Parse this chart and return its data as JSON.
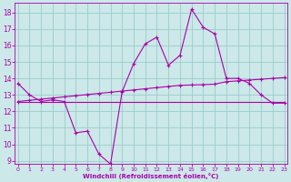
{
  "xlabel": "Windchill (Refroidissement éolien,°C)",
  "background_color": "#cce8e8",
  "line_color": "#aa00aa",
  "grid_color": "#99cccc",
  "x_hours": [
    0,
    1,
    2,
    3,
    4,
    5,
    6,
    7,
    8,
    9,
    10,
    11,
    12,
    13,
    14,
    15,
    16,
    17,
    18,
    19,
    20,
    21,
    22,
    23
  ],
  "temp_main": [
    13.7,
    13.0,
    12.6,
    12.7,
    12.6,
    10.7,
    10.8,
    9.4,
    8.8,
    13.2,
    14.9,
    16.1,
    16.5,
    14.8,
    15.4,
    18.2,
    17.1,
    16.7,
    14.0,
    14.0,
    13.7,
    13.0,
    12.5,
    12.5
  ],
  "temp_trend": [
    12.6,
    12.67,
    12.74,
    12.81,
    12.88,
    12.95,
    13.02,
    13.09,
    13.16,
    13.23,
    13.3,
    13.37,
    13.44,
    13.51,
    13.58,
    13.6,
    13.62,
    13.65,
    13.8,
    13.85,
    13.9,
    13.95,
    14.0,
    14.05
  ],
  "temp_flat": [
    12.55,
    12.55,
    12.55,
    12.55,
    12.55,
    12.55,
    12.55,
    12.55,
    12.55,
    12.55,
    12.55,
    12.55,
    12.55,
    12.55,
    12.55,
    12.55,
    12.55,
    12.55,
    12.55,
    12.55,
    12.55,
    12.55,
    12.55,
    12.55
  ],
  "ylim": [
    8.8,
    18.6
  ],
  "yticks": [
    9,
    10,
    11,
    12,
    13,
    14,
    15,
    16,
    17,
    18
  ],
  "xticks": [
    0,
    1,
    2,
    3,
    4,
    5,
    6,
    7,
    8,
    9,
    10,
    11,
    12,
    13,
    14,
    15,
    16,
    17,
    18,
    19,
    20,
    21,
    22,
    23
  ],
  "xlim": [
    -0.3,
    23.3
  ]
}
